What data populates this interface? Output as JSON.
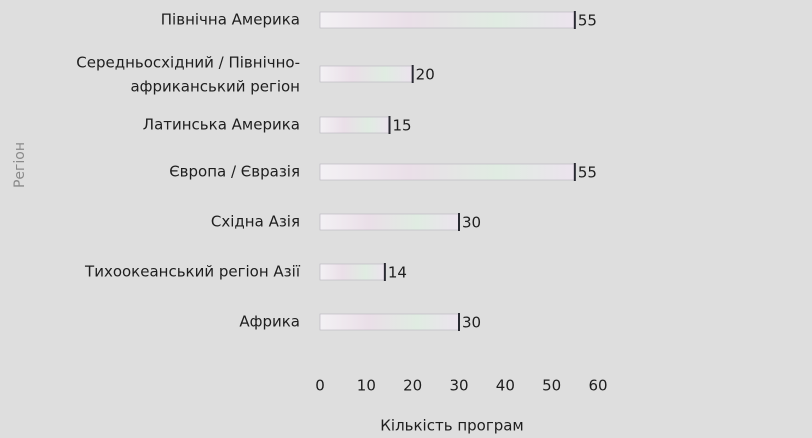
{
  "chart_data": {
    "type": "barh",
    "categories": [
      "Північна Америка",
      [
        "Середньосхідний / Північно-",
        "африканський регіон"
      ],
      "Латинська Америка",
      "Європа / Євразія",
      "Східна Азія",
      "Тихоокеанський регіон Азії",
      "Африка"
    ],
    "values": [
      55,
      20,
      15,
      55,
      30,
      14,
      30
    ],
    "xlabel": "Кількість програм",
    "ylabel": "Регіон",
    "xlim": [
      0,
      60
    ],
    "xticks": [
      0,
      10,
      20,
      30,
      40,
      50,
      60
    ],
    "color": "#e8e4ec",
    "edge_color": "#2a2a33",
    "grid": false
  }
}
